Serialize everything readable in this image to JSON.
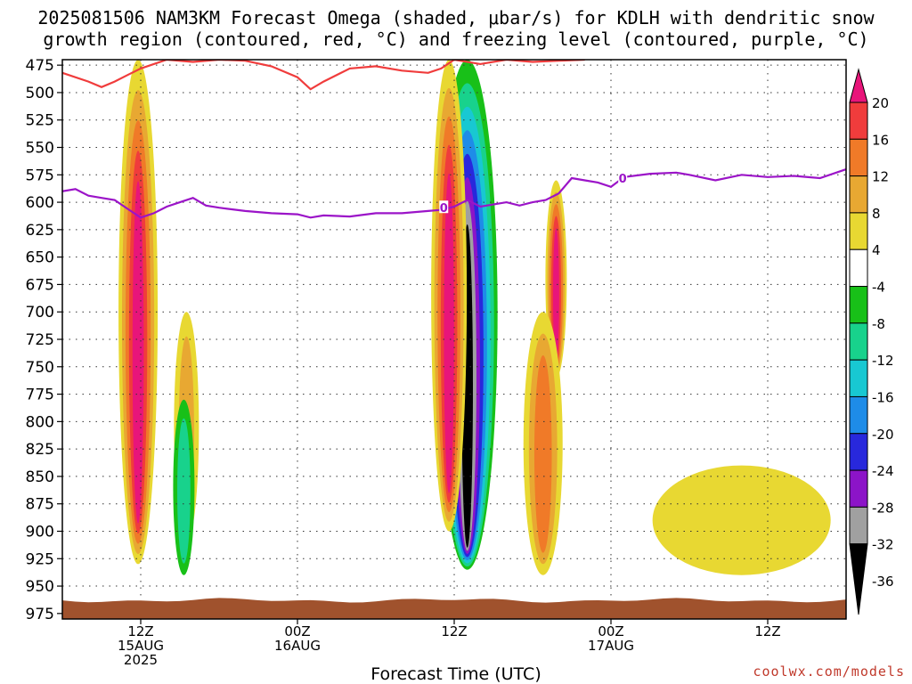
{
  "chart_data": {
    "type": "heatmap",
    "title_line1": "2025081506 NAM3KM Forecast Omega (shaded, μbar/s) for KDLH with dendritic snow",
    "title_line2": "growth region (contoured, red, °C) and freezing level (contoured, purple, °C)",
    "xlabel": "Forecast Time (UTC)",
    "x_ticks": [
      {
        "hour": 6,
        "labels": [
          "12Z",
          "15AUG",
          "2025"
        ]
      },
      {
        "hour": 18,
        "labels": [
          "00Z",
          "16AUG"
        ]
      },
      {
        "hour": 30,
        "labels": [
          "12Z"
        ]
      },
      {
        "hour": 42,
        "labels": [
          "00Z",
          "17AUG"
        ]
      },
      {
        "hour": 54,
        "labels": [
          "12Z"
        ]
      }
    ],
    "xlim_hours": [
      0,
      60
    ],
    "y_ticks": [
      475,
      500,
      525,
      550,
      575,
      600,
      625,
      650,
      675,
      700,
      725,
      750,
      775,
      800,
      825,
      850,
      875,
      900,
      925,
      950,
      975
    ],
    "ylim_mb": [
      470,
      980
    ],
    "colorbar": {
      "labels": [
        "20",
        "16",
        "12",
        "8",
        "4",
        "-4",
        "-8",
        "-12",
        "-16",
        "-20",
        "-24",
        "-28",
        "-32",
        "-36"
      ],
      "colors": [
        "#e8157a",
        "#f03c3c",
        "#f07a28",
        "#e8a832",
        "#e8d832",
        "#ffffff",
        "#18c018",
        "#18d28c",
        "#18c8d2",
        "#1e8ce8",
        "#2828dc",
        "#8c14c8",
        "#a0a0a0",
        "#000000"
      ]
    },
    "omega_regions": [
      {
        "name": "early-column",
        "hour": 5.8,
        "p_top": 470,
        "p_bot": 930,
        "max": 24,
        "sign": 1
      },
      {
        "name": "early-east-band",
        "hour": 9.5,
        "p_top": 700,
        "p_bot": 910,
        "max": 10,
        "sign": 1
      },
      {
        "name": "early-green",
        "hour": 9.3,
        "p_top": 780,
        "p_bot": 940,
        "max": -8,
        "sign": -1
      },
      {
        "name": "main-sink",
        "hour": 31.0,
        "p_top": 470,
        "p_bot": 935,
        "max": -40,
        "sign": -1
      },
      {
        "name": "main-rise-west",
        "hour": 29.6,
        "p_top": 470,
        "p_bot": 900,
        "max": 20,
        "sign": 1
      },
      {
        "name": "east-column",
        "hour": 37.8,
        "p_top": 580,
        "p_bot": 760,
        "max": 22,
        "sign": 1
      },
      {
        "name": "east-low",
        "hour": 36.8,
        "p_top": 700,
        "p_bot": 940,
        "max": 14,
        "sign": 1
      },
      {
        "name": "low-level-yellow",
        "hour": 52.0,
        "p_top": 840,
        "p_bot": 940,
        "max": 6,
        "sign": 1
      }
    ],
    "dendritic_line_mb": [
      [
        0,
        482
      ],
      [
        2,
        490
      ],
      [
        3,
        495
      ],
      [
        4,
        490
      ],
      [
        5,
        484
      ],
      [
        6,
        478
      ],
      [
        8,
        470
      ],
      [
        10,
        472
      ],
      [
        12,
        470
      ],
      [
        14,
        471
      ],
      [
        16,
        476
      ],
      [
        18,
        486
      ],
      [
        19,
        497
      ],
      [
        20,
        490
      ],
      [
        22,
        478
      ],
      [
        24,
        476
      ],
      [
        26,
        480
      ],
      [
        28,
        482
      ],
      [
        29,
        478
      ],
      [
        30,
        470
      ],
      [
        32,
        474
      ],
      [
        34,
        470
      ],
      [
        36,
        472
      ],
      [
        38,
        471
      ],
      [
        40,
        470
      ]
    ],
    "freezing_line_mb": [
      [
        0,
        590
      ],
      [
        1,
        588
      ],
      [
        2,
        594
      ],
      [
        3,
        596
      ],
      [
        4,
        598
      ],
      [
        5,
        606
      ],
      [
        6,
        614
      ],
      [
        7,
        610
      ],
      [
        8,
        604
      ],
      [
        9,
        600
      ],
      [
        10,
        596
      ],
      [
        11,
        603
      ],
      [
        12,
        605
      ],
      [
        14,
        608
      ],
      [
        16,
        610
      ],
      [
        18,
        611
      ],
      [
        19,
        614
      ],
      [
        20,
        612
      ],
      [
        22,
        613
      ],
      [
        24,
        610
      ],
      [
        26,
        610
      ],
      [
        28,
        608
      ],
      [
        29,
        607
      ],
      [
        30,
        604
      ],
      [
        31,
        598
      ],
      [
        32,
        604
      ],
      [
        34,
        600
      ],
      [
        35,
        603
      ],
      [
        36,
        600
      ],
      [
        37,
        598
      ],
      [
        38,
        592
      ],
      [
        39,
        578
      ],
      [
        40,
        580
      ],
      [
        41,
        582
      ],
      [
        42,
        586
      ],
      [
        43,
        577
      ],
      [
        45,
        574
      ],
      [
        47,
        573
      ],
      [
        48,
        575
      ],
      [
        50,
        580
      ],
      [
        52,
        575
      ],
      [
        54,
        577
      ],
      [
        56,
        576
      ],
      [
        58,
        578
      ],
      [
        60,
        570
      ]
    ],
    "freezing_label": "0",
    "ground_mb": 963
  },
  "credit": "coolwx.com/models"
}
